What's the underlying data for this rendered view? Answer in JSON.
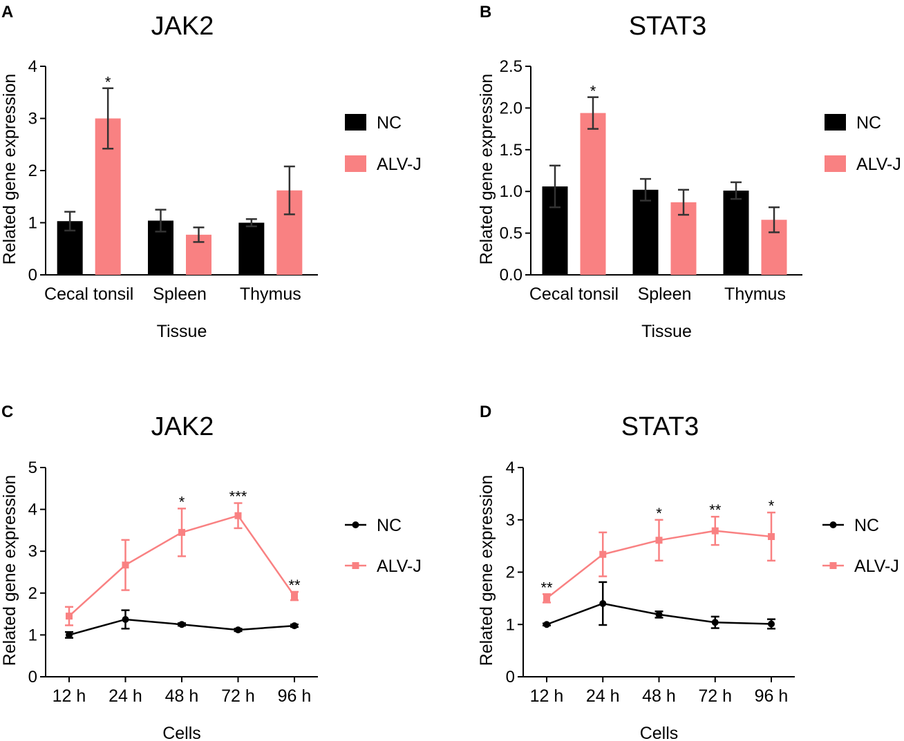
{
  "colors": {
    "nc": "#000000",
    "alvj": "#f98182",
    "axis": "#000000",
    "errbar": "#333333"
  },
  "legend": {
    "nc": "NC",
    "alvj": "ALV-J"
  },
  "chart_data": [
    {
      "panel": "A",
      "type": "bar",
      "title": "JAK2",
      "xlabel": "Tissue",
      "ylabel": "Related gene expression",
      "ylim": [
        0,
        4
      ],
      "yticks": [
        0,
        1,
        2,
        3,
        4
      ],
      "ytick_labels": [
        "0",
        "1",
        "2",
        "3",
        "4"
      ],
      "categories": [
        "Cecal tonsil",
        "Spleen",
        "Thymus"
      ],
      "series": [
        {
          "name": "NC",
          "values": [
            1.03,
            1.04,
            1.0
          ],
          "errors": [
            0.18,
            0.21,
            0.07
          ],
          "sig": [
            "",
            "",
            ""
          ]
        },
        {
          "name": "ALV-J",
          "values": [
            3.0,
            0.77,
            1.62
          ],
          "errors": [
            0.58,
            0.14,
            0.46
          ],
          "sig": [
            "*",
            "",
            ""
          ]
        }
      ]
    },
    {
      "panel": "B",
      "type": "bar",
      "title": "STAT3",
      "xlabel": "Tissue",
      "ylabel": "Related gene expression",
      "ylim": [
        0,
        2.5
      ],
      "yticks": [
        0,
        0.5,
        1.0,
        1.5,
        2.0,
        2.5
      ],
      "ytick_labels": [
        "0.0",
        "0.5",
        "1.0",
        "1.5",
        "2.0",
        "2.5"
      ],
      "categories": [
        "Cecal tonsil",
        "Spleen",
        "Thymus"
      ],
      "series": [
        {
          "name": "NC",
          "values": [
            1.06,
            1.02,
            1.01
          ],
          "errors": [
            0.25,
            0.13,
            0.1
          ],
          "sig": [
            "",
            "",
            ""
          ]
        },
        {
          "name": "ALV-J",
          "values": [
            1.94,
            0.87,
            0.66
          ],
          "errors": [
            0.19,
            0.15,
            0.15
          ],
          "sig": [
            "*",
            "",
            ""
          ]
        }
      ]
    },
    {
      "panel": "C",
      "type": "line",
      "title": "JAK2",
      "xlabel": "Cells",
      "ylabel": "Related gene expression",
      "ylim": [
        0,
        5
      ],
      "yticks": [
        0,
        1,
        2,
        3,
        4,
        5
      ],
      "ytick_labels": [
        "0",
        "1",
        "2",
        "3",
        "4",
        "5"
      ],
      "categories": [
        "12 h",
        "24 h",
        "48 h",
        "72 h",
        "96 h"
      ],
      "series": [
        {
          "name": "NC",
          "values": [
            1.0,
            1.37,
            1.25,
            1.12,
            1.22
          ],
          "errors": [
            0.07,
            0.22,
            0.03,
            0.03,
            0.03
          ],
          "sig": [
            "",
            "",
            "",
            "",
            ""
          ]
        },
        {
          "name": "ALV-J",
          "values": [
            1.45,
            2.67,
            3.45,
            3.85,
            1.93
          ],
          "errors": [
            0.22,
            0.6,
            0.57,
            0.3,
            0.1
          ],
          "sig": [
            "",
            "",
            "*",
            "***",
            "**"
          ]
        }
      ]
    },
    {
      "panel": "D",
      "type": "line",
      "title": "STAT3",
      "xlabel": "Cells",
      "ylabel": "Related gene expression",
      "ylim": [
        0,
        4
      ],
      "yticks": [
        0,
        1,
        2,
        3,
        4
      ],
      "ytick_labels": [
        "0",
        "1",
        "2",
        "3",
        "4"
      ],
      "categories": [
        "12 h",
        "24 h",
        "48 h",
        "72 h",
        "96 h"
      ],
      "series": [
        {
          "name": "NC",
          "values": [
            1.0,
            1.4,
            1.19,
            1.04,
            1.01
          ],
          "errors": [
            0.02,
            0.41,
            0.06,
            0.11,
            0.09
          ],
          "sig": [
            "",
            "",
            "",
            "",
            ""
          ]
        },
        {
          "name": "ALV-J",
          "values": [
            1.5,
            2.34,
            2.61,
            2.79,
            2.68
          ],
          "errors": [
            0.08,
            0.42,
            0.39,
            0.27,
            0.46
          ],
          "sig": [
            "**",
            "",
            "*",
            "**",
            "*"
          ]
        }
      ]
    }
  ]
}
